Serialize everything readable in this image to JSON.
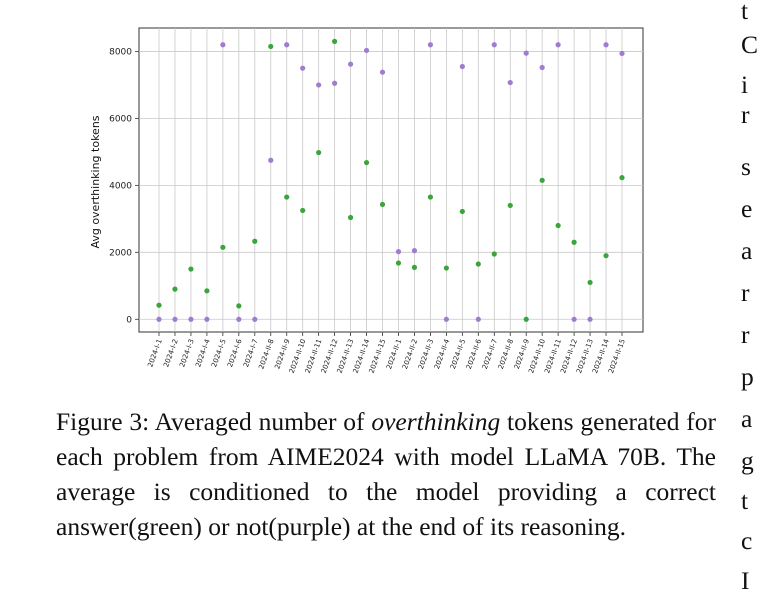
{
  "chart_data": {
    "type": "scatter",
    "ylabel": "Avg overthinking tokens",
    "ylim": [
      -380,
      8700
    ],
    "yticks": [
      0,
      2000,
      4000,
      6000,
      8000
    ],
    "grid": true,
    "categories": [
      "2024-I-1",
      "2024-I-2",
      "2024-I-3",
      "2024-I-4",
      "2024-I-5",
      "2024-I-6",
      "2024-I-7",
      "2024-II-8",
      "2024-II-9",
      "2024-II-10",
      "2024-II-11",
      "2024-II-12",
      "2024-II-13",
      "2024-II-14",
      "2024-II-15",
      "2024-II-1",
      "2024-II-2",
      "2024-II-3",
      "2024-II-4",
      "2024-II-5",
      "2024-II-6",
      "2024-II-7",
      "2024-II-8",
      "2024-II-9",
      "2024-II-10",
      "2024-II-11",
      "2024-II-12",
      "2024-II-13",
      "2024-II-14",
      "2024-II-15"
    ],
    "series": [
      {
        "color": "#3aa53a",
        "values": [
          420,
          900,
          1500,
          850,
          2150,
          400,
          2330,
          8150,
          3650,
          3250,
          4980,
          8300,
          3040,
          4680,
          3430,
          1680,
          1550,
          3650,
          1530,
          3220,
          1650,
          1950,
          3400,
          0,
          4150,
          2800,
          2300,
          1100,
          1900,
          4230
        ]
      },
      {
        "color": "#a07cd0",
        "values": [
          0,
          0,
          0,
          0,
          8200,
          0,
          0,
          4750,
          8200,
          7500,
          7000,
          7050,
          7620,
          8030,
          7380,
          2020,
          2050,
          8200,
          0,
          7550,
          0,
          8200,
          7070,
          7950,
          7520,
          8200,
          0,
          0,
          8200,
          7940
        ]
      }
    ]
  },
  "caption": {
    "prefix": "Figure 3: Averaged number of ",
    "emphasis": "overthinking",
    "suffix": " tokens generated for each problem from AIME2024 with model LLaMA 70B. The average is conditioned to the model providing a correct answer(green) or not(purple) at the end of its reasoning."
  },
  "margin_letters": [
    "t",
    "C",
    "i",
    "r",
    "s",
    "e",
    "a",
    "r",
    "r",
    "p",
    "a",
    "g",
    "t",
    "c",
    "I"
  ]
}
